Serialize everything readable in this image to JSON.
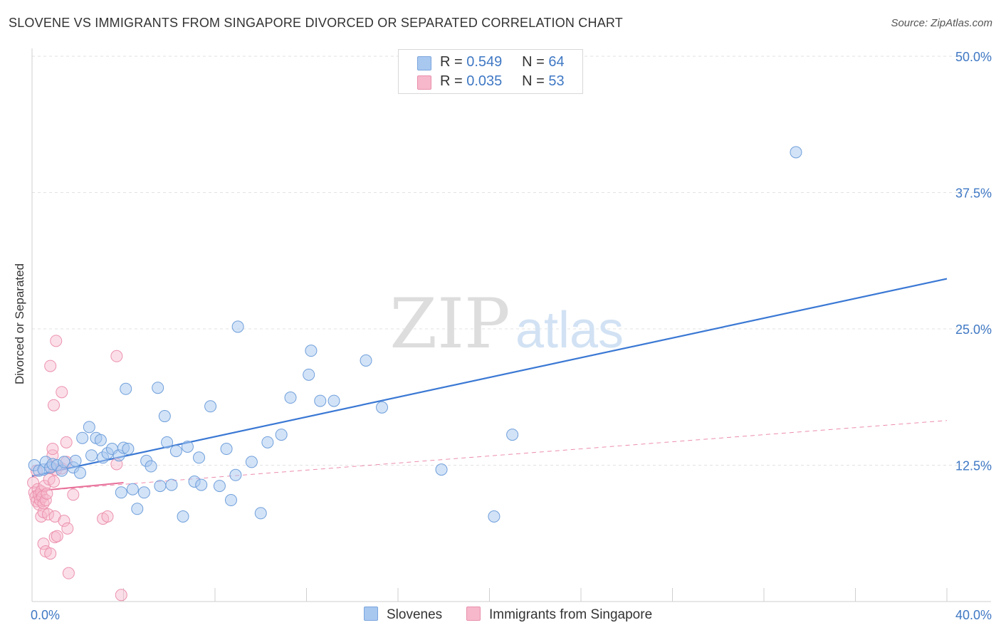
{
  "header": {
    "title": "SLOVENE VS IMMIGRANTS FROM SINGAPORE DIVORCED OR SEPARATED CORRELATION CHART",
    "source": "Source: ZipAtlas.com"
  },
  "legend": {
    "r_label": "R =",
    "n_label": "N =",
    "series": [
      {
        "r": "0.549",
        "n": "64",
        "color": "#a8c8f0"
      },
      {
        "r": "0.035",
        "n": "53",
        "color": "#f7b8cb"
      }
    ]
  },
  "watermark": {
    "zip": "ZIP",
    "atlas": "atlas"
  },
  "colors": {
    "blue": "#3a78d4",
    "pink": "#e8709a",
    "axis_text": "#3f78c4"
  },
  "chart_data": {
    "type": "scatter",
    "title": "SLOVENE VS IMMIGRANTS FROM SINGAPORE DIVORCED OR SEPARATED CORRELATION CHART",
    "xlabel": "",
    "ylabel": "Divorced or Separated",
    "xlim": [
      0,
      40
    ],
    "ylim": [
      0,
      50
    ],
    "x_tick_labels": [
      "0.0%",
      "40.0%"
    ],
    "y_ticks": [
      12.5,
      25.0,
      37.5,
      50.0
    ],
    "y_tick_labels": [
      "12.5%",
      "25.0%",
      "37.5%",
      "50.0%"
    ],
    "grid": true,
    "series": [
      {
        "name": "Slovenes",
        "r": 0.549,
        "n": 64,
        "trend": {
          "x": [
            0,
            40
          ],
          "y": [
            11.5,
            29.6
          ],
          "style": "solid"
        },
        "points": [
          [
            0.1,
            12.5
          ],
          [
            0.3,
            12.0
          ],
          [
            0.5,
            12.1
          ],
          [
            0.6,
            12.8
          ],
          [
            0.8,
            12.3
          ],
          [
            0.9,
            12.6
          ],
          [
            1.1,
            12.5
          ],
          [
            1.3,
            12.0
          ],
          [
            1.4,
            12.8
          ],
          [
            1.8,
            12.3
          ],
          [
            1.9,
            12.9
          ],
          [
            2.1,
            11.8
          ],
          [
            2.2,
            15.0
          ],
          [
            2.5,
            16.0
          ],
          [
            2.8,
            15.0
          ],
          [
            2.6,
            13.4
          ],
          [
            3.0,
            14.8
          ],
          [
            3.1,
            13.2
          ],
          [
            3.3,
            13.6
          ],
          [
            3.5,
            14.0
          ],
          [
            3.8,
            13.4
          ],
          [
            3.9,
            10.0
          ],
          [
            4.0,
            14.1
          ],
          [
            4.1,
            19.5
          ],
          [
            4.2,
            14.0
          ],
          [
            4.4,
            10.3
          ],
          [
            4.6,
            8.5
          ],
          [
            4.9,
            10.0
          ],
          [
            5.0,
            12.9
          ],
          [
            5.2,
            12.4
          ],
          [
            5.5,
            19.6
          ],
          [
            5.6,
            10.6
          ],
          [
            5.8,
            17.0
          ],
          [
            5.9,
            14.6
          ],
          [
            6.1,
            10.7
          ],
          [
            6.3,
            13.8
          ],
          [
            6.6,
            7.8
          ],
          [
            6.8,
            14.2
          ],
          [
            7.1,
            11.0
          ],
          [
            7.3,
            13.2
          ],
          [
            7.4,
            10.7
          ],
          [
            7.8,
            17.9
          ],
          [
            8.2,
            10.6
          ],
          [
            8.5,
            14.0
          ],
          [
            8.7,
            9.3
          ],
          [
            8.9,
            11.6
          ],
          [
            9.0,
            25.2
          ],
          [
            9.6,
            12.8
          ],
          [
            10.0,
            8.1
          ],
          [
            10.3,
            14.6
          ],
          [
            10.9,
            15.3
          ],
          [
            11.3,
            18.7
          ],
          [
            12.1,
            20.8
          ],
          [
            12.2,
            23.0
          ],
          [
            12.6,
            18.4
          ],
          [
            13.2,
            18.4
          ],
          [
            14.6,
            22.1
          ],
          [
            15.3,
            17.8
          ],
          [
            17.9,
            12.1
          ],
          [
            20.2,
            7.8
          ],
          [
            21.0,
            15.3
          ],
          [
            33.4,
            41.2
          ]
        ]
      },
      {
        "name": "Immigrants from Singapore",
        "r": 0.035,
        "n": 53,
        "trend": {
          "x": [
            0,
            4
          ],
          "y": [
            10.1,
            10.9
          ],
          "style": "solid"
        },
        "trend_extended": {
          "x": [
            0,
            40
          ],
          "y": [
            10.1,
            16.6
          ],
          "style": "dashed"
        },
        "points": [
          [
            0.05,
            10.9
          ],
          [
            0.1,
            10.0
          ],
          [
            0.15,
            9.6
          ],
          [
            0.2,
            9.2
          ],
          [
            0.2,
            12.0
          ],
          [
            0.25,
            10.3
          ],
          [
            0.3,
            8.9
          ],
          [
            0.3,
            9.8
          ],
          [
            0.35,
            9.3
          ],
          [
            0.4,
            10.1
          ],
          [
            0.4,
            7.8
          ],
          [
            0.45,
            9.6
          ],
          [
            0.5,
            8.2
          ],
          [
            0.5,
            9.0
          ],
          [
            0.5,
            5.3
          ],
          [
            0.55,
            10.6
          ],
          [
            0.6,
            9.3
          ],
          [
            0.6,
            4.6
          ],
          [
            0.65,
            9.9
          ],
          [
            0.7,
            8.0
          ],
          [
            0.75,
            11.2
          ],
          [
            0.8,
            4.4
          ],
          [
            0.8,
            21.6
          ],
          [
            0.85,
            12.3
          ],
          [
            0.9,
            13.4
          ],
          [
            0.9,
            14.0
          ],
          [
            0.95,
            11.0
          ],
          [
            0.95,
            18.0
          ],
          [
            1.0,
            7.8
          ],
          [
            1.0,
            5.9
          ],
          [
            1.05,
            12.1
          ],
          [
            1.1,
            6.0
          ],
          [
            1.05,
            23.9
          ],
          [
            1.3,
            12.2
          ],
          [
            1.3,
            19.2
          ],
          [
            1.4,
            7.4
          ],
          [
            1.5,
            14.6
          ],
          [
            1.55,
            6.7
          ],
          [
            1.6,
            2.6
          ],
          [
            1.8,
            9.8
          ],
          [
            1.5,
            12.8
          ],
          [
            3.1,
            7.6
          ],
          [
            3.3,
            7.8
          ],
          [
            3.7,
            12.6
          ],
          [
            3.7,
            22.5
          ],
          [
            3.9,
            0.6
          ]
        ]
      }
    ]
  },
  "bottom_legend": {
    "items": [
      "Slovenes",
      "Immigrants from Singapore"
    ]
  }
}
